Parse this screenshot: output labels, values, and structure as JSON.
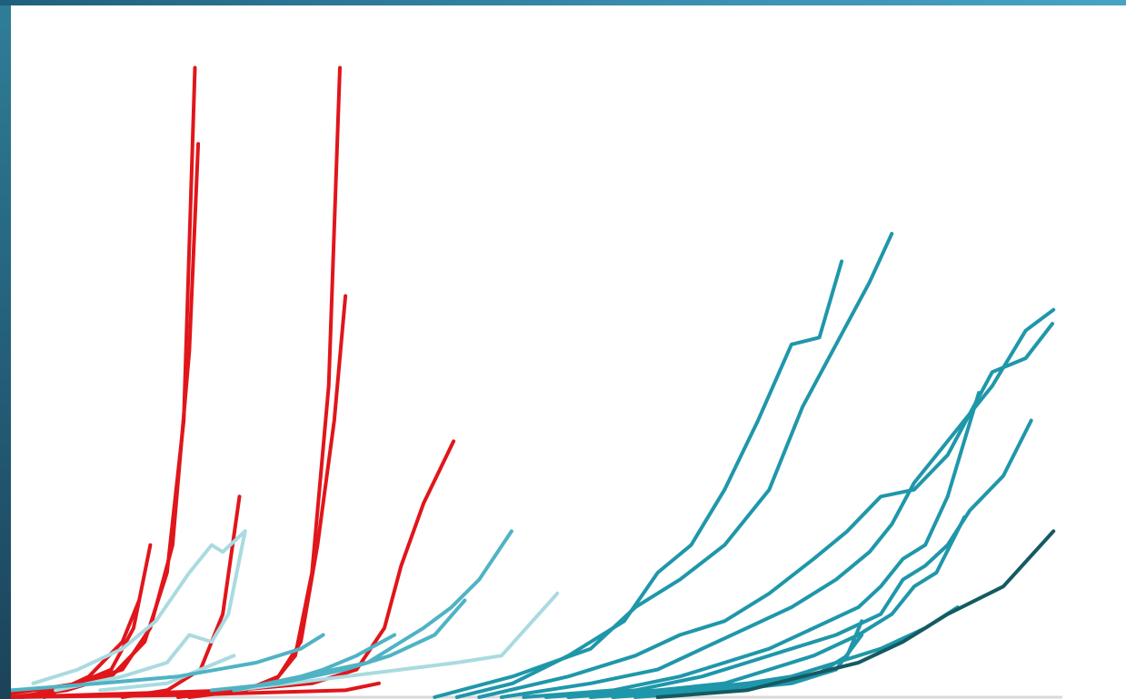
{
  "chart_data": {
    "type": "line",
    "title": "",
    "xlabel": "",
    "ylabel": "",
    "x_range": [
      0,
      100
    ],
    "y_range": [
      0,
      100
    ],
    "grid": false,
    "legend": "none",
    "colors": {
      "red": "#e0161b",
      "pale_teal": "#a9dbe0",
      "light_teal": "#4fb3c4",
      "teal": "#1f97aa",
      "dark_teal": "#1b7a86",
      "darkest_teal": "#155a62",
      "baseline": "#d9d9d9"
    },
    "series": [
      {
        "color": "red",
        "x": [
          0,
          5,
          9,
          12,
          14,
          15.5,
          16.5
        ],
        "y": [
          0,
          1,
          3,
          8,
          18,
          40,
          91
        ]
      },
      {
        "color": "red",
        "x": [
          0,
          6,
          10,
          12.5,
          14.5,
          16,
          16.8
        ],
        "y": [
          0.5,
          2,
          4,
          10,
          22,
          50,
          80
        ]
      },
      {
        "color": "red",
        "x": [
          1,
          6,
          9,
          11,
          12.5
        ],
        "y": [
          0,
          2,
          4,
          10,
          22
        ]
      },
      {
        "color": "red",
        "x": [
          3,
          7,
          10,
          11.5
        ],
        "y": [
          0,
          3,
          8,
          14
        ]
      },
      {
        "color": "red",
        "x": [
          10,
          14,
          17,
          19,
          20.5
        ],
        "y": [
          0,
          1,
          4,
          12,
          29
        ]
      },
      {
        "color": "red",
        "x": [
          15,
          20,
          23.5,
          25.5,
          27,
          28.5,
          29.5
        ],
        "y": [
          0,
          1,
          2,
          6,
          18,
          45,
          91
        ]
      },
      {
        "color": "red",
        "x": [
          16,
          21,
          24,
          26,
          27.5,
          29,
          30
        ],
        "y": [
          0,
          1,
          3,
          8,
          22,
          40,
          58
        ]
      },
      {
        "color": "red",
        "x": [
          0,
          10,
          20,
          27,
          31,
          33.5,
          35,
          37,
          39.7
        ],
        "y": [
          0,
          0.5,
          1,
          2,
          4,
          10,
          19,
          28,
          37
        ]
      },
      {
        "color": "red",
        "x": [
          0,
          15,
          30,
          33
        ],
        "y": [
          0,
          0.3,
          1,
          2
        ]
      },
      {
        "color": "pale_teal",
        "x": [
          2,
          6,
          10,
          13,
          16,
          18,
          19,
          21
        ],
        "y": [
          2,
          4,
          7,
          11,
          18,
          22,
          21,
          24
        ]
      },
      {
        "color": "pale_teal",
        "x": [
          4,
          10,
          14,
          16,
          18,
          19.5,
          21
        ],
        "y": [
          1,
          3,
          5,
          9,
          8,
          12,
          24
        ]
      },
      {
        "color": "pale_teal",
        "x": [
          8,
          14,
          17,
          20
        ],
        "y": [
          1,
          2,
          4,
          6
        ]
      },
      {
        "color": "pale_teal",
        "x": [
          20,
          25,
          30,
          35,
          40,
          44,
          49
        ],
        "y": [
          1,
          2,
          3,
          4,
          5,
          6,
          15
        ]
      },
      {
        "color": "light_teal",
        "x": [
          0,
          8,
          15,
          22,
          26,
          28
        ],
        "y": [
          1,
          2,
          3,
          5,
          7,
          9
        ]
      },
      {
        "color": "light_teal",
        "x": [
          20,
          26,
          32,
          35,
          37,
          39.5,
          42,
          44.9
        ],
        "y": [
          1,
          3,
          5,
          8,
          10,
          13,
          17,
          24
        ]
      },
      {
        "color": "light_teal",
        "x": [
          24,
          28,
          31,
          34.4
        ],
        "y": [
          2,
          4,
          6,
          9
        ]
      },
      {
        "color": "light_teal",
        "x": [
          18,
          24,
          30,
          34,
          38,
          40.7
        ],
        "y": [
          1,
          2,
          4,
          6,
          9,
          14
        ]
      },
      {
        "color": "teal",
        "x": [
          40,
          45,
          50,
          55,
          58,
          61,
          64,
          67,
          70,
          72.5,
          74.5
        ],
        "y": [
          0,
          2,
          6,
          11,
          18,
          22,
          30,
          40,
          51,
          52,
          63
        ]
      },
      {
        "color": "teal",
        "x": [
          38,
          45,
          52,
          56,
          60,
          64,
          68,
          71,
          74,
          77,
          79
        ],
        "y": [
          0,
          3,
          7,
          13,
          17,
          22,
          30,
          42,
          51,
          60,
          67
        ]
      },
      {
        "color": "teal",
        "x": [
          42,
          50,
          56,
          60,
          64,
          68,
          72,
          75,
          78,
          81,
          84,
          86,
          88,
          91,
          93.5
        ],
        "y": [
          0,
          3,
          6,
          9,
          11,
          15,
          20,
          24,
          29,
          30,
          35,
          41,
          45,
          53,
          56
        ]
      },
      {
        "color": "teal",
        "x": [
          44,
          52,
          58,
          62,
          66,
          70,
          74,
          77,
          79,
          81,
          84,
          86,
          88,
          91,
          93.4
        ],
        "y": [
          0,
          2,
          4,
          7,
          10,
          13,
          17,
          21,
          25,
          31,
          37,
          41,
          47,
          49,
          54
        ]
      },
      {
        "color": "teal",
        "x": [
          46,
          54,
          60,
          64,
          68,
          72,
          76,
          78,
          80,
          82,
          84,
          86.8
        ],
        "y": [
          0,
          1,
          3,
          5,
          7,
          10,
          13,
          16,
          20,
          22,
          29,
          44
        ]
      },
      {
        "color": "teal",
        "x": [
          48,
          56,
          62,
          66,
          70,
          74,
          78,
          80,
          82,
          84,
          86,
          89,
          91.5
        ],
        "y": [
          0,
          1,
          3,
          5,
          7,
          9,
          12,
          17,
          19,
          22,
          27,
          32,
          40
        ]
      },
      {
        "color": "teal",
        "x": [
          50,
          58,
          64,
          68,
          72,
          76,
          79,
          81,
          83,
          85.5
        ],
        "y": [
          0,
          1,
          2,
          4,
          6,
          9,
          12,
          16,
          18,
          26
        ]
      },
      {
        "color": "teal",
        "x": [
          52,
          60,
          66,
          70,
          74,
          78,
          82,
          84.9
        ],
        "y": [
          0,
          1,
          2,
          3,
          5,
          7,
          10,
          13
        ]
      },
      {
        "color": "teal",
        "x": [
          54,
          62,
          68,
          72,
          75,
          76.3
        ],
        "y": [
          0,
          1,
          2,
          3,
          6,
          11
        ]
      },
      {
        "color": "teal",
        "x": [
          56,
          64,
          70,
          74,
          76.3
        ],
        "y": [
          0,
          1,
          2,
          4,
          9
        ]
      },
      {
        "color": "darkest_teal",
        "x": [
          58,
          66,
          71,
          76,
          80,
          84,
          89,
          93.5
        ],
        "y": [
          0,
          1,
          3,
          5,
          8,
          12,
          16,
          24
        ]
      }
    ]
  }
}
